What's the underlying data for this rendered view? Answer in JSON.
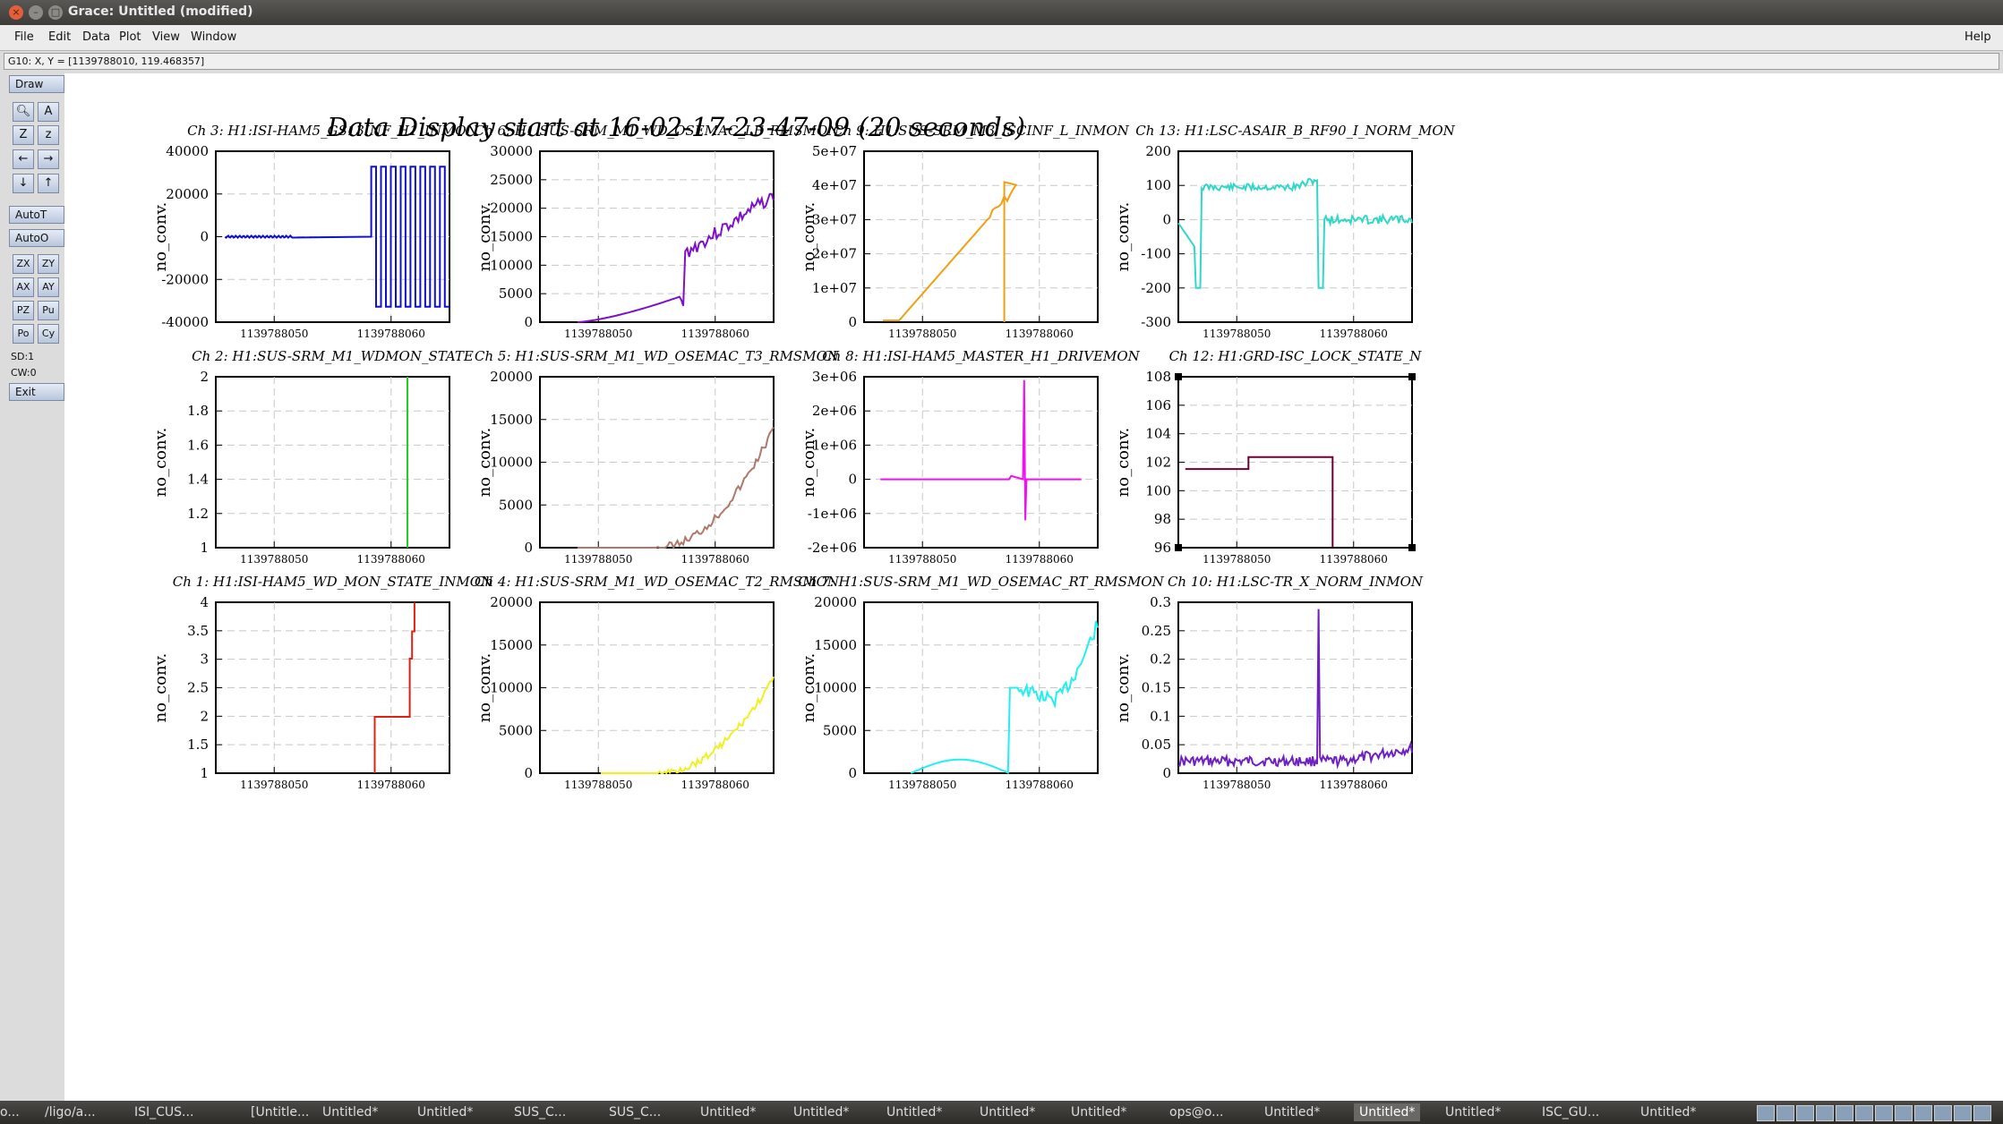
{
  "window": {
    "title": "Grace: Untitled (modified)"
  },
  "menu": {
    "file": "File",
    "edit": "Edit",
    "data": "Data",
    "plot": "Plot",
    "view": "View",
    "window": "Window",
    "help": "Help"
  },
  "coords": "G10: X, Y = [1139788010, 119.468357]",
  "tools": {
    "draw": "Draw",
    "autot": "AutoT",
    "autoo": "AutoO",
    "zx": "ZX",
    "zy": "ZY",
    "ax": "AX",
    "ay": "AY",
    "pz": "PZ",
    "pu": "Pu",
    "po": "Po",
    "cy": "Cy",
    "sd": "SD:1",
    "cw": "CW:0",
    "exit": "Exit"
  },
  "page_title": "Data Display start at 16-02-17-23-47-09 (20 seconds)",
  "xaxis_ticks": [
    "1139788050",
    "1139788060"
  ],
  "ylabel": "no_conv.",
  "panels": [
    {
      "title": "Ch 3: H1:ISI-HAM5_GS13INF_H1_INMON",
      "color": "#1010d0",
      "yticks": [
        "40000",
        "20000",
        "0",
        "-20000",
        "-40000"
      ]
    },
    {
      "title": "Ch 6: H1:SUS-SRM_M1_WD_OSEMAC_LF_RMSMON",
      "color": "#8010c8",
      "yticks": [
        "30000",
        "25000",
        "20000",
        "15000",
        "10000",
        "5000",
        "0"
      ]
    },
    {
      "title": "Ch 9: H1:SUS-SRM_M3_ISCINF_L_INMON",
      "color": "#f0a010",
      "yticks": [
        "5e+07",
        "4e+07",
        "3e+07",
        "2e+07",
        "1e+07",
        "0"
      ]
    },
    {
      "title": "Ch 13: H1:LSC-ASAIR_B_RF90_I_NORM_MON",
      "color": "#30d8c8",
      "yticks": [
        "200",
        "100",
        "0",
        "-100",
        "-200",
        "-300"
      ]
    },
    {
      "title": "Ch 2: H1:SUS-SRM_M1_WDMON_STATE",
      "color": "#20d020",
      "yticks": [
        "2",
        "1.8",
        "1.6",
        "1.4",
        "1.2",
        "1"
      ]
    },
    {
      "title": "Ch 5: H1:SUS-SRM_M1_WD_OSEMAC_T3_RMSMON",
      "color": "#b07868",
      "yticks": [
        "20000",
        "15000",
        "10000",
        "5000",
        "0"
      ]
    },
    {
      "title": "Ch 8: H1:ISI-HAM5_MASTER_H1_DRIVEMON",
      "color": "#f010f0",
      "yticks": [
        "3e+06",
        "2e+06",
        "1e+06",
        "0",
        "-1e+06",
        "-2e+06"
      ]
    },
    {
      "title": "Ch 12: H1:GRD-ISC_LOCK_STATE_N",
      "color": "#700030",
      "yticks": [
        "108",
        "106",
        "104",
        "102",
        "100",
        "98",
        "96"
      ]
    },
    {
      "title": "Ch 1: H1:ISI-HAM5_WD_MON_STATE_INMON",
      "color": "#e02010",
      "yticks": [
        "4",
        "3.5",
        "3",
        "2.5",
        "2",
        "1.5",
        "1"
      ]
    },
    {
      "title": "Ch 4: H1:SUS-SRM_M1_WD_OSEMAC_T2_RMSMON",
      "color": "#f0f020",
      "yticks": [
        "20000",
        "15000",
        "10000",
        "5000",
        "0"
      ]
    },
    {
      "title": "Ch 7: H1:SUS-SRM_M1_WD_OSEMAC_RT_RMSMON",
      "color": "#20f0f0",
      "yticks": [
        "20000",
        "15000",
        "10000",
        "5000",
        "0"
      ]
    },
    {
      "title": "Ch 10: H1:LSC-TR_X_NORM_INMON",
      "color": "#7020c0",
      "yticks": [
        "0.3",
        "0.25",
        "0.2",
        "0.15",
        "0.1",
        "0.05",
        "0"
      ]
    }
  ],
  "taskbar": [
    "o...",
    "/ligo/a...",
    "ISI_CUS...",
    "[Untitle...",
    "Untitled*",
    "Untitled*",
    "SUS_C...",
    "SUS_C...",
    "Untitled*",
    "Untitled*",
    "Untitled*",
    "Untitled*",
    "Untitled*",
    "ops@o...",
    "Untitled*",
    "Untitled*",
    "Untitled*",
    "ISC_GU...",
    "Untitled*"
  ]
}
